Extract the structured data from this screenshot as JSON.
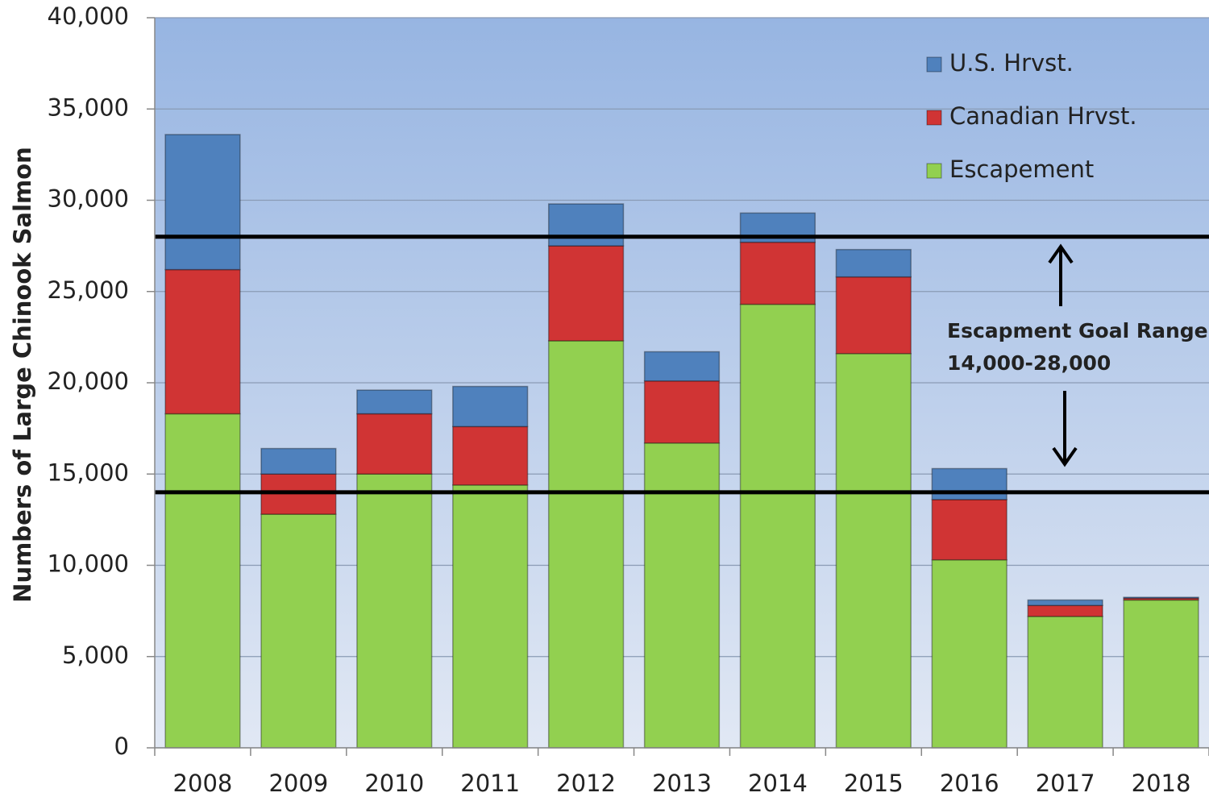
{
  "chart_data": {
    "type": "stacked_bar",
    "y_label": "Numbers of Large Chinook Salmon",
    "categories": [
      "2008",
      "2009",
      "2010",
      "2011",
      "2012",
      "2013",
      "2014",
      "2015",
      "2016",
      "2017",
      "2018"
    ],
    "series": [
      {
        "name": "Escapement",
        "color": "#92d050",
        "values": [
          18300,
          12800,
          15000,
          14400,
          22300,
          16700,
          24300,
          21600,
          10300,
          7200,
          8100
        ]
      },
      {
        "name": "Canadian Hrvst.",
        "color": "#d03434",
        "values": [
          7900,
          2200,
          3300,
          3200,
          5200,
          3400,
          3400,
          4200,
          3300,
          600,
          100
        ]
      },
      {
        "name": "U.S. Hrvst.",
        "color": "#4f81bd",
        "values": [
          7400,
          1400,
          1300,
          2200,
          2300,
          1600,
          1600,
          1500,
          1700,
          300,
          50
        ]
      }
    ],
    "ylim": [
      0,
      40000
    ],
    "yticks": [
      0,
      {
        "value": 5000,
        "label": "5,000"
      },
      {
        "value": 10000,
        "label": "10,000"
      },
      {
        "value": 15000,
        "label": "15,000"
      },
      {
        "value": 20000,
        "label": "20,000"
      },
      {
        "value": 25000,
        "label": "25,000"
      },
      {
        "value": 30000,
        "label": "30,000"
      },
      {
        "value": 35000,
        "label": "35,000"
      },
      {
        "value": 40000,
        "label": "40,000"
      }
    ],
    "grid": true,
    "reference_lines": [
      14000,
      28000
    ],
    "annotations": [
      "Escapment Goal Range",
      "14,000-28,000"
    ]
  }
}
